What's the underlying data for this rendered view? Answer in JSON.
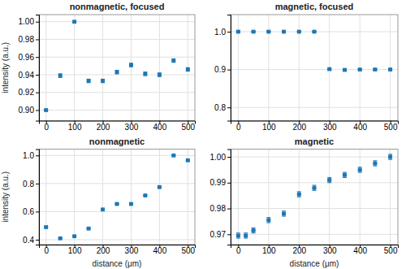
{
  "chart_data": [
    {
      "type": "scatter",
      "title": "nonmagnetic, focused",
      "y_label": "intensity (a.u.)",
      "x": [
        0,
        50,
        100,
        150,
        200,
        250,
        300,
        350,
        400,
        450,
        500
      ],
      "values": [
        0.9,
        0.939,
        1.0,
        0.933,
        0.933,
        0.943,
        0.951,
        0.941,
        0.94,
        0.956,
        0.946
      ],
      "x_error": [
        5,
        5,
        5,
        5,
        5,
        5,
        5,
        5,
        5,
        5,
        5
      ],
      "y_error": [
        0.001,
        0.002,
        0.001,
        0.002,
        0.002,
        0.002,
        0.002,
        0.002,
        0.002,
        0.002,
        0.002
      ],
      "color": "#1f77b4",
      "xlim": [
        -25,
        525
      ],
      "xticks": [
        0,
        100,
        200,
        300,
        400,
        500
      ],
      "ylim": [
        0.888,
        1.008
      ],
      "yticks": [
        {
          "value": 0.9,
          "label": "0.90"
        },
        0.92,
        0.94,
        0.96,
        0.98,
        {
          "value": 1.0,
          "label": "1.00"
        }
      ],
      "grid": true
    },
    {
      "type": "scatter",
      "title": "magnetic, focused",
      "x": [
        0,
        50,
        100,
        150,
        200,
        250,
        300,
        350,
        400,
        450,
        500
      ],
      "values": [
        1.0,
        1.0,
        1.0,
        1.0,
        1.0,
        1.0,
        0.901,
        0.899,
        0.9,
        0.9,
        0.9
      ],
      "x_error": [
        5,
        5,
        5,
        5,
        5,
        5,
        5,
        5,
        5,
        5,
        5
      ],
      "y_error": [
        0.001,
        0.001,
        0.001,
        0.001,
        0.001,
        0.001,
        0.002,
        0.002,
        0.002,
        0.002,
        0.002
      ],
      "color": "#1f77b4",
      "xlim": [
        -25,
        525
      ],
      "xticks": [
        0,
        100,
        200,
        300,
        400,
        500
      ],
      "ylim": [
        0.765,
        1.045
      ],
      "yticks": [
        0.8,
        0.9,
        {
          "value": 1.0,
          "label": "1.0"
        }
      ],
      "grid": true
    },
    {
      "type": "scatter",
      "title": "nonmagnetic",
      "y_label": "intensity (a.u.)",
      "x_label": "distance (μm)",
      "x": [
        0,
        50,
        100,
        150,
        200,
        250,
        300,
        350,
        400,
        450,
        500
      ],
      "values": [
        0.49,
        0.41,
        0.425,
        0.48,
        0.615,
        0.655,
        0.655,
        0.715,
        0.775,
        1.0,
        0.965
      ],
      "x_error": [
        5,
        5,
        5,
        5,
        5,
        5,
        5,
        5,
        5,
        5,
        5
      ],
      "y_error": [
        0.005,
        0.004,
        0.004,
        0.005,
        0.005,
        0.005,
        0.005,
        0.005,
        0.007,
        0.003,
        0.007
      ],
      "color": "#1f77b4",
      "xlim": [
        -25,
        525
      ],
      "xticks": [
        0,
        100,
        200,
        300,
        400,
        500
      ],
      "ylim": [
        0.365,
        1.045
      ],
      "yticks": [
        0.4,
        0.6,
        0.8,
        {
          "value": 1.0,
          "label": "1.0"
        }
      ],
      "grid": true
    },
    {
      "type": "scatter",
      "title": "magnetic",
      "x_label": "distance (μm)",
      "x": [
        0,
        25,
        50,
        100,
        150,
        200,
        250,
        300,
        350,
        400,
        450,
        500
      ],
      "values": [
        0.9695,
        0.9695,
        0.9715,
        0.9755,
        0.978,
        0.9855,
        0.988,
        0.991,
        0.993,
        0.995,
        0.9975,
        1.0
      ],
      "x_error": [
        5,
        5,
        5,
        5,
        5,
        5,
        5,
        5,
        5,
        5,
        5,
        5
      ],
      "y_error": [
        0.001,
        0.001,
        0.001,
        0.001,
        0.001,
        0.001,
        0.001,
        0.001,
        0.001,
        0.001,
        0.001,
        0.001
      ],
      "color": "#1f77b4",
      "xlim": [
        -25,
        525
      ],
      "xticks": [
        0,
        100,
        200,
        300,
        400,
        500
      ],
      "ylim": [
        0.966,
        1.003
      ],
      "yticks": [
        0.97,
        0.98,
        0.99,
        {
          "value": 1.0,
          "label": "1.00"
        }
      ],
      "grid": true
    }
  ]
}
